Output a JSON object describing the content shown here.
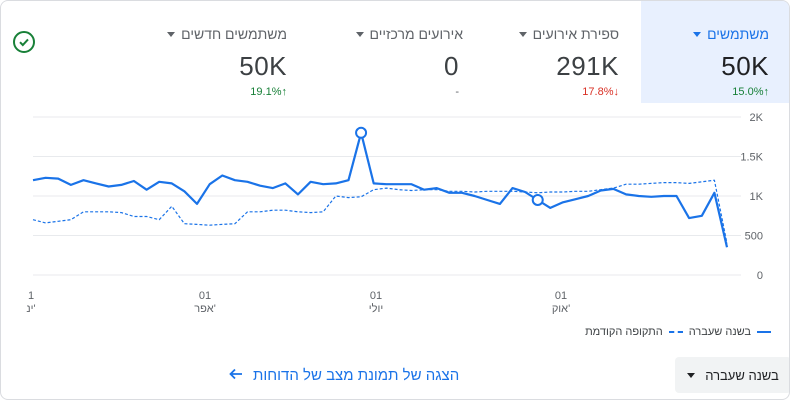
{
  "metrics": [
    {
      "label": "משתמשים",
      "value": "50K",
      "change": "15.0%",
      "direction": "up"
    },
    {
      "label": "ספירת אירועים",
      "value": "291K",
      "change": "17.8%",
      "direction": "down"
    },
    {
      "label": "אירועים מרכזיים",
      "value": "0",
      "change": "-",
      "direction": "flat"
    },
    {
      "label": "משתמשים חדשים",
      "value": "50K",
      "change": "19.1%",
      "direction": "up"
    }
  ],
  "legend": {
    "current": "בשנה שעברה",
    "previous": "התקופה הקודמת"
  },
  "period_label": "בשנה שעברה",
  "view_link": "הצגה של תמונת מצב של הדוחות",
  "icons": {
    "status": "check-circle-icon",
    "arrow": "arrow-left-icon"
  },
  "colors": {
    "primary": "#1a73e8",
    "up": "#188038",
    "down": "#d93025"
  },
  "chart_data": {
    "type": "line",
    "y_ticks": [
      "2K",
      "1.5K",
      "1K",
      "500",
      "0"
    ],
    "ylim": [
      0,
      2000
    ],
    "x_ticks": [
      {
        "top": "1",
        "bottom": "ינ'"
      },
      {
        "top": "01",
        "bottom": "אפר'"
      },
      {
        "top": "01",
        "bottom": "יולי"
      },
      {
        "top": "01",
        "bottom": "אוק'"
      }
    ],
    "series": [
      {
        "name": "בשנה שעברה",
        "style": "solid",
        "values": [
          1200,
          1230,
          1220,
          1140,
          1200,
          1160,
          1120,
          1140,
          1190,
          1080,
          1180,
          1160,
          1060,
          900,
          1150,
          1260,
          1200,
          1180,
          1130,
          1100,
          1160,
          1020,
          1180,
          1150,
          1160,
          1200,
          1800,
          1160,
          1150,
          1150,
          1150,
          1080,
          1100,
          1040,
          1040,
          1000,
          950,
          900,
          1100,
          1050,
          950,
          850,
          920,
          960,
          1000,
          1070,
          1090,
          1020,
          1000,
          990,
          1000,
          1000,
          720,
          750,
          1040,
          350
        ]
      },
      {
        "name": "התקופה הקודמת",
        "style": "dashed",
        "values": [
          700,
          660,
          680,
          700,
          800,
          800,
          800,
          790,
          740,
          740,
          700,
          870,
          650,
          640,
          630,
          640,
          650,
          800,
          800,
          820,
          820,
          800,
          790,
          800,
          1000,
          980,
          990,
          1080,
          1100,
          1080,
          1070,
          1080,
          1080,
          1060,
          1060,
          1050,
          1060,
          1060,
          1060,
          1050,
          1040,
          1050,
          1050,
          1060,
          1060,
          1080,
          1100,
          1150,
          1150,
          1160,
          1170,
          1170,
          1160,
          1180,
          1200,
          400
        ]
      }
    ],
    "highlighted_points": [
      {
        "series": 0,
        "index": 26
      },
      {
        "series": 0,
        "index": 40
      }
    ]
  }
}
